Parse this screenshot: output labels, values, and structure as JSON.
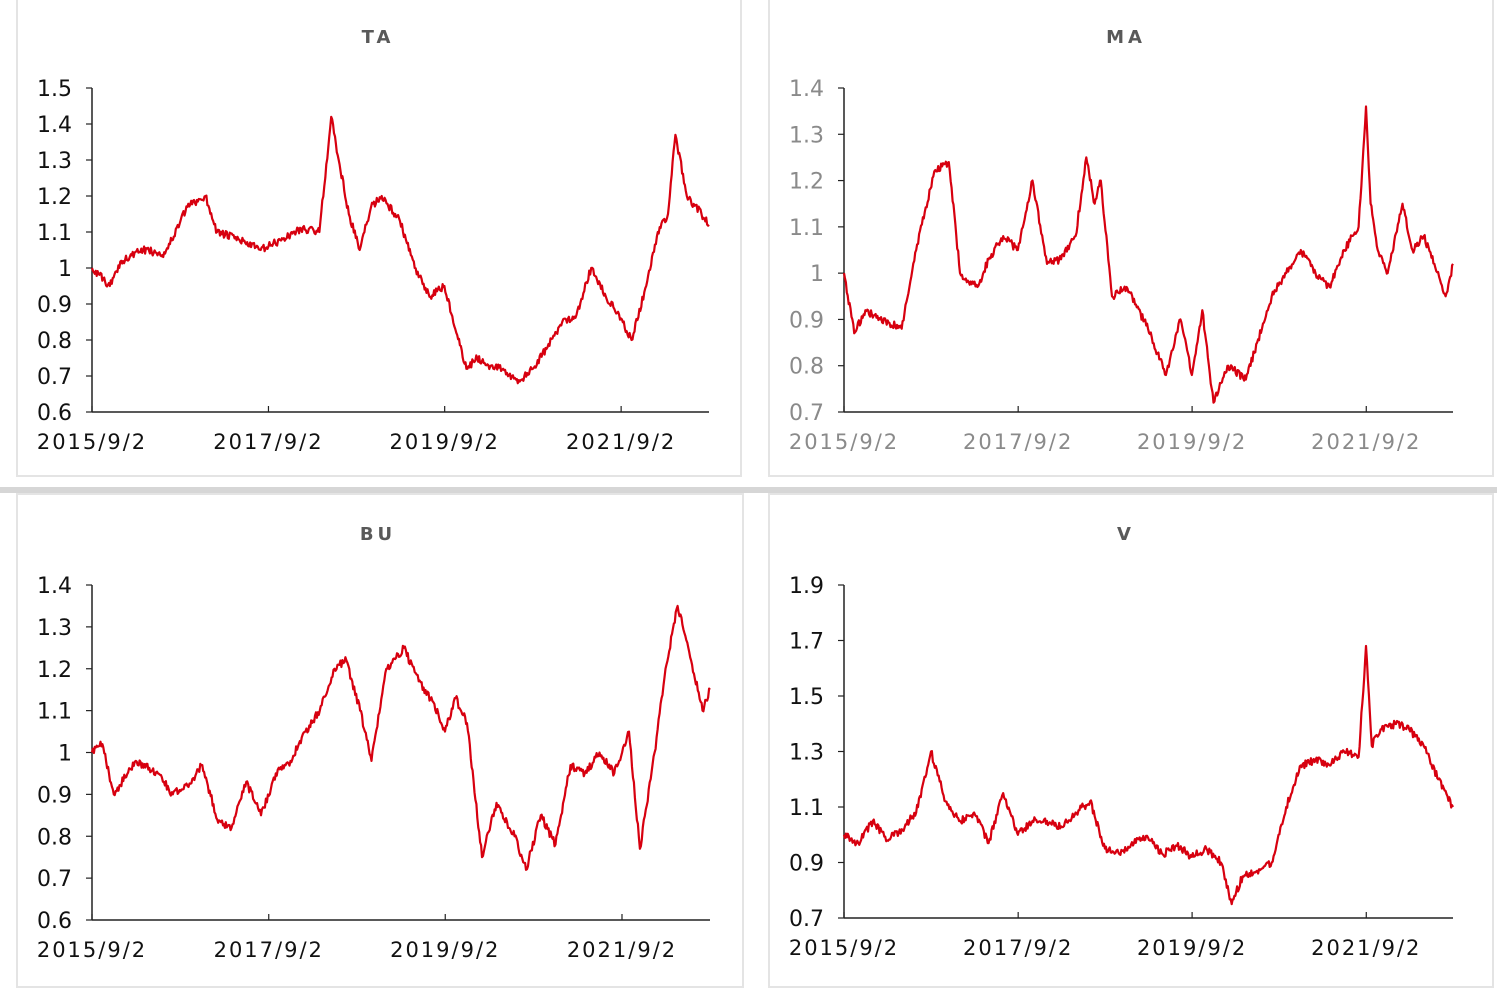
{
  "colors": {
    "series": "#d7000f",
    "axis": "#222222",
    "dark_tick": "#111111",
    "grey_tick": "#8a8a8a",
    "title": "#595959"
  },
  "chart_data": [
    {
      "type": "line",
      "title": "TA",
      "xlabel": "",
      "ylabel": "",
      "x_tick_labels": [
        "2015/9/2",
        "2017/9/2",
        "2019/9/2",
        "2021/9/2"
      ],
      "y_tick_labels": [
        "0.6",
        "0.7",
        "0.8",
        "0.9",
        "1",
        "1.1",
        "1.2",
        "1.3",
        "1.4",
        "1.5"
      ],
      "ylim": [
        0.6,
        1.5
      ],
      "xlim": [
        "2015-09-02",
        "2022-09-01"
      ],
      "grid": false,
      "tick_color": "dark",
      "series": [
        {
          "x": [
            "2015-09-02",
            "2015-11-15",
            "2016-01-01",
            "2016-04-01",
            "2016-07-01",
            "2016-10-01",
            "2016-12-15",
            "2017-02-01",
            "2017-05-01",
            "2017-08-01",
            "2017-11-01",
            "2018-01-15",
            "2018-04-01",
            "2018-05-20",
            "2018-06-20",
            "2018-08-01",
            "2018-09-15",
            "2018-11-01",
            "2018-12-15",
            "2019-03-01",
            "2019-05-01",
            "2019-07-01",
            "2019-09-01",
            "2019-10-20",
            "2019-12-01",
            "2020-01-15",
            "2020-03-01",
            "2020-05-01",
            "2020-07-01",
            "2020-09-01",
            "2020-11-01",
            "2021-01-01",
            "2021-03-01",
            "2021-05-01",
            "2021-07-01",
            "2021-09-01",
            "2021-10-15",
            "2021-12-15",
            "2022-02-01",
            "2022-03-15",
            "2022-04-15",
            "2022-06-01",
            "2022-08-01",
            "2022-09-01"
          ],
          "y": [
            1.0,
            0.95,
            1.02,
            1.05,
            1.04,
            1.17,
            1.2,
            1.1,
            1.08,
            1.05,
            1.08,
            1.11,
            1.1,
            1.42,
            1.3,
            1.15,
            1.05,
            1.17,
            1.2,
            1.13,
            1.0,
            0.92,
            0.95,
            0.82,
            0.72,
            0.75,
            0.73,
            0.72,
            0.68,
            0.72,
            0.78,
            0.85,
            0.87,
            1.0,
            0.92,
            0.86,
            0.8,
            0.95,
            1.1,
            1.15,
            1.37,
            1.2,
            1.15,
            1.12
          ]
        }
      ]
    },
    {
      "type": "line",
      "title": "MA",
      "xlabel": "",
      "ylabel": "",
      "x_tick_labels": [
        "2015/9/2",
        "2017/9/2",
        "2019/9/2",
        "2021/9/2"
      ],
      "y_tick_labels": [
        "0.7",
        "0.8",
        "0.9",
        "1",
        "1.1",
        "1.2",
        "1.3",
        "1.4"
      ],
      "ylim": [
        0.7,
        1.4
      ],
      "xlim": [
        "2015-09-02",
        "2022-09-01"
      ],
      "grid": false,
      "tick_color": "grey",
      "series": [
        {
          "x": [
            "2015-09-02",
            "2015-10-15",
            "2015-12-01",
            "2016-02-01",
            "2016-05-01",
            "2016-07-01",
            "2016-09-15",
            "2016-11-15",
            "2017-01-01",
            "2017-03-15",
            "2017-05-01",
            "2017-07-01",
            "2017-09-01",
            "2017-11-01",
            "2018-01-01",
            "2018-03-01",
            "2018-05-01",
            "2018-06-15",
            "2018-07-20",
            "2018-08-15",
            "2018-10-01",
            "2018-12-01",
            "2019-03-01",
            "2019-05-15",
            "2019-07-15",
            "2019-09-01",
            "2019-10-15",
            "2019-12-01",
            "2020-02-01",
            "2020-04-15",
            "2020-06-01",
            "2020-08-01",
            "2020-10-01",
            "2020-12-01",
            "2021-02-01",
            "2021-04-01",
            "2021-06-01",
            "2021-08-01",
            "2021-09-01",
            "2021-09-20",
            "2021-10-20",
            "2021-12-01",
            "2022-02-01",
            "2022-03-15",
            "2022-05-01",
            "2022-06-15",
            "2022-08-01",
            "2022-09-01"
          ],
          "y": [
            1.0,
            0.87,
            0.92,
            0.9,
            0.88,
            1.05,
            1.22,
            1.24,
            1.0,
            0.97,
            1.03,
            1.08,
            1.05,
            1.2,
            1.02,
            1.03,
            1.08,
            1.25,
            1.15,
            1.2,
            0.95,
            0.97,
            0.88,
            0.78,
            0.9,
            0.78,
            0.92,
            0.72,
            0.8,
            0.77,
            0.85,
            0.95,
            1.0,
            1.05,
            1.0,
            0.97,
            1.05,
            1.1,
            1.36,
            1.15,
            1.05,
            1.0,
            1.15,
            1.05,
            1.08,
            1.02,
            0.95,
            1.02
          ]
        }
      ]
    },
    {
      "type": "line",
      "title": "BU",
      "xlabel": "",
      "ylabel": "",
      "x_tick_labels": [
        "2015/9/2",
        "2017/9/2",
        "2019/9/2",
        "2021/9/2"
      ],
      "y_tick_labels": [
        "0.6",
        "0.7",
        "0.8",
        "0.9",
        "1",
        "1.1",
        "1.2",
        "1.3",
        "1.4"
      ],
      "ylim": [
        0.6,
        1.4
      ],
      "xlim": [
        "2015-09-02",
        "2022-09-01"
      ],
      "grid": false,
      "tick_color": "dark",
      "series": [
        {
          "x": [
            "2015-09-02",
            "2015-10-15",
            "2015-12-01",
            "2016-03-01",
            "2016-06-01",
            "2016-08-01",
            "2016-10-01",
            "2016-12-01",
            "2017-02-01",
            "2017-04-01",
            "2017-06-01",
            "2017-08-01",
            "2017-10-01",
            "2017-12-01",
            "2018-02-01",
            "2018-04-01",
            "2018-06-01",
            "2018-07-20",
            "2018-09-15",
            "2018-11-01",
            "2019-01-01",
            "2019-03-15",
            "2019-05-15",
            "2019-07-15",
            "2019-09-01",
            "2019-10-15",
            "2019-12-01",
            "2020-02-01",
            "2020-04-01",
            "2020-06-15",
            "2020-08-01",
            "2020-10-01",
            "2020-12-01",
            "2021-02-01",
            "2021-04-01",
            "2021-06-01",
            "2021-08-01",
            "2021-10-01",
            "2021-11-15",
            "2022-01-15",
            "2022-03-01",
            "2022-04-20",
            "2022-06-15",
            "2022-08-01",
            "2022-09-01"
          ],
          "y": [
            1.0,
            1.02,
            0.9,
            0.98,
            0.95,
            0.9,
            0.92,
            0.97,
            0.84,
            0.82,
            0.93,
            0.85,
            0.95,
            0.98,
            1.05,
            1.1,
            1.2,
            1.22,
            1.1,
            0.98,
            1.2,
            1.25,
            1.17,
            1.12,
            1.05,
            1.13,
            1.07,
            0.75,
            0.88,
            0.8,
            0.72,
            0.85,
            0.78,
            0.97,
            0.95,
            1.0,
            0.95,
            1.05,
            0.77,
            1.0,
            1.2,
            1.35,
            1.22,
            1.1,
            1.15
          ]
        }
      ]
    },
    {
      "type": "line",
      "title": "V",
      "xlabel": "",
      "ylabel": "",
      "x_tick_labels": [
        "2015/9/2",
        "2017/9/2",
        "2019/9/2",
        "2021/9/2"
      ],
      "y_tick_labels": [
        "0.7",
        "0.9",
        "1.1",
        "1.3",
        "1.5",
        "1.7",
        "1.9"
      ],
      "ylim": [
        0.7,
        1.9
      ],
      "xlim": [
        "2015-09-02",
        "2022-09-01"
      ],
      "grid": false,
      "tick_color": "dark",
      "series": [
        {
          "x": [
            "2015-09-02",
            "2015-11-01",
            "2016-01-01",
            "2016-03-01",
            "2016-05-01",
            "2016-07-01",
            "2016-09-01",
            "2016-11-01",
            "2017-01-01",
            "2017-03-01",
            "2017-05-01",
            "2017-07-01",
            "2017-09-01",
            "2017-11-01",
            "2018-01-01",
            "2018-03-01",
            "2018-05-01",
            "2018-07-01",
            "2018-09-01",
            "2018-11-01",
            "2019-01-01",
            "2019-03-01",
            "2019-05-01",
            "2019-07-01",
            "2019-09-01",
            "2019-11-01",
            "2020-01-01",
            "2020-02-15",
            "2020-04-01",
            "2020-06-01",
            "2020-08-01",
            "2020-10-01",
            "2020-12-01",
            "2021-02-01",
            "2021-04-01",
            "2021-06-01",
            "2021-08-01",
            "2021-09-01",
            "2021-09-25",
            "2021-11-01",
            "2022-01-01",
            "2022-03-01",
            "2022-05-01",
            "2022-07-01",
            "2022-09-01"
          ],
          "y": [
            1.0,
            0.97,
            1.05,
            0.98,
            1.02,
            1.08,
            1.3,
            1.12,
            1.05,
            1.08,
            0.97,
            1.15,
            1.0,
            1.05,
            1.05,
            1.03,
            1.08,
            1.12,
            0.95,
            0.93,
            0.97,
            0.99,
            0.93,
            0.96,
            0.92,
            0.95,
            0.9,
            0.75,
            0.85,
            0.87,
            0.9,
            1.1,
            1.25,
            1.27,
            1.25,
            1.3,
            1.28,
            1.68,
            1.32,
            1.38,
            1.4,
            1.38,
            1.32,
            1.2,
            1.1
          ]
        }
      ]
    }
  ]
}
